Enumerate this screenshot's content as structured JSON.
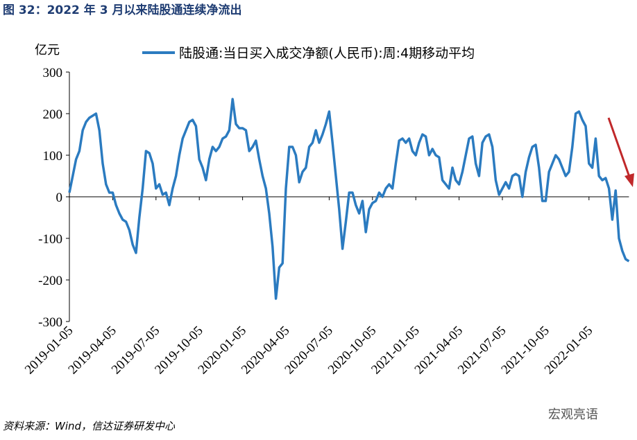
{
  "chart_data": {
    "type": "line",
    "title": "图 32：2022 年 3 月以来陆股通连续净流出",
    "y_label": "亿元",
    "source": "资料来源：Wind，信达证券研发中心",
    "watermark": "宏观亮语",
    "legend": "top",
    "ylim": [
      -300,
      300
    ],
    "yticks": [
      -300,
      -200,
      -100,
      0,
      100,
      200,
      300
    ],
    "categories": [
      "2019-01-05",
      null,
      null,
      null,
      null,
      null,
      null,
      null,
      null,
      null,
      null,
      null,
      null,
      "2019-04-05",
      null,
      null,
      null,
      null,
      null,
      null,
      null,
      null,
      null,
      null,
      null,
      null,
      "2019-07-05",
      null,
      null,
      null,
      null,
      null,
      null,
      null,
      null,
      null,
      null,
      null,
      null,
      "2019-10-05",
      null,
      null,
      null,
      null,
      null,
      null,
      null,
      null,
      null,
      null,
      null,
      null,
      "2020-01-05",
      null,
      null,
      null,
      null,
      null,
      null,
      null,
      null,
      null,
      null,
      null,
      null,
      "2020-04-05",
      null,
      null,
      null,
      null,
      null,
      null,
      null,
      null,
      null,
      null,
      null,
      null,
      "2020-07-05",
      null,
      null,
      null,
      null,
      null,
      null,
      null,
      null,
      null,
      null,
      null,
      null,
      "2020-10-05",
      null,
      null,
      null,
      null,
      null,
      null,
      null,
      null,
      null,
      null,
      null,
      null,
      "2021-01-05",
      null,
      null,
      null,
      null,
      null,
      null,
      null,
      null,
      null,
      null,
      null,
      null,
      "2021-04-05",
      null,
      null,
      null,
      null,
      null,
      null,
      null,
      null,
      null,
      null,
      null,
      null,
      "2021-07-05",
      null,
      null,
      null,
      null,
      null,
      null,
      null,
      null,
      null,
      null,
      null,
      null,
      "2021-10-05",
      null,
      null,
      null,
      null,
      null,
      null,
      null,
      null,
      null,
      null,
      null,
      null,
      "2022-01-05",
      null,
      null,
      null,
      null,
      null,
      null,
      null,
      null,
      null,
      null,
      null,
      null
    ],
    "series": [
      {
        "name": "陆股通:当日买入成交净额(人民币):周:4期移动平均",
        "color": "#2b7bc0",
        "values": [
          10,
          50,
          90,
          110,
          160,
          180,
          190,
          195,
          200,
          160,
          80,
          30,
          10,
          10,
          -20,
          -40,
          -55,
          -60,
          -80,
          -115,
          -135,
          -50,
          20,
          110,
          105,
          80,
          20,
          30,
          5,
          10,
          -20,
          20,
          50,
          100,
          140,
          160,
          180,
          185,
          170,
          90,
          70,
          40,
          90,
          120,
          110,
          120,
          140,
          145,
          160,
          235,
          175,
          165,
          165,
          160,
          110,
          120,
          135,
          90,
          50,
          20,
          -40,
          -120,
          -245,
          -170,
          -160,
          20,
          120,
          120,
          100,
          35,
          60,
          70,
          120,
          130,
          160,
          130,
          150,
          175,
          205,
          130,
          50,
          -30,
          -125,
          -60,
          10,
          10,
          -20,
          -40,
          -10,
          -85,
          -30,
          -15,
          -10,
          10,
          0,
          20,
          30,
          20,
          80,
          135,
          140,
          130,
          140,
          110,
          100,
          130,
          150,
          145,
          100,
          115,
          100,
          95,
          40,
          30,
          20,
          70,
          40,
          30,
          60,
          100,
          140,
          145,
          80,
          50,
          130,
          145,
          150,
          120,
          40,
          5,
          20,
          35,
          20,
          50,
          55,
          50,
          0,
          60,
          95,
          120,
          125,
          70,
          -10,
          -10,
          60,
          80,
          100,
          90,
          70,
          50,
          60,
          120,
          200,
          205,
          185,
          170,
          80,
          70,
          140,
          50,
          40,
          45,
          20,
          -55,
          15,
          -100,
          -130,
          -150,
          -155
        ]
      }
    ]
  }
}
